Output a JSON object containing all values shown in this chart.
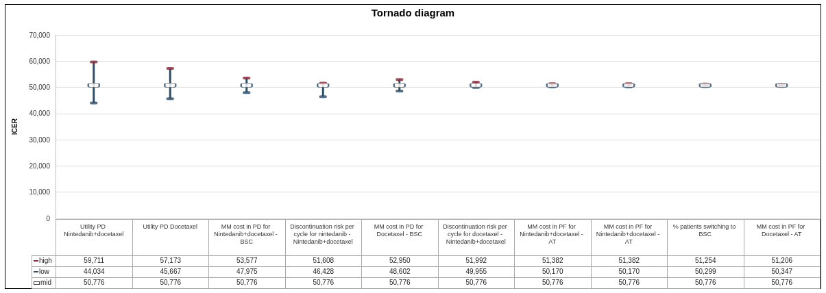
{
  "chart_data": {
    "type": "scatter",
    "title": "Tornado diagram",
    "ylabel": "ICER",
    "categories": [
      "Utility PD Nintedanib+docetaxel",
      "Utility PD Docetaxel",
      "MM cost in PD for Nintedanib+docetaxel - BSC",
      "Discontinuation risk per cycle for nintedanib - Nintedanib+docetaxel",
      "MM cost in PD for Docetaxel - BSC",
      "Discontinuation risk per cycle for docetaxel - Nintedanib+docetaxel",
      "MM cost in PF for Nintedanib+docetaxel - AT",
      "MM cost in PF for Nintedanib+docetaxel - AT",
      "% patients switching to BSC",
      "MM cost in PF for Docetaxel - AT"
    ],
    "series": [
      {
        "name": "high",
        "color": "#8b2332",
        "values": [
          59711,
          57173,
          53577,
          51608,
          52950,
          51992,
          51382,
          51382,
          51254,
          51206
        ],
        "value_labels": [
          "59,711",
          "57,173",
          "53,577",
          "51,608",
          "52,950",
          "51,992",
          "51,382",
          "51,382",
          "51,254",
          "51,206"
        ]
      },
      {
        "name": "low",
        "color": "#2c4e6b",
        "values": [
          44034,
          45667,
          47975,
          46428,
          48602,
          49955,
          50170,
          50170,
          50299,
          50347
        ],
        "value_labels": [
          "44,034",
          "45,667",
          "47,975",
          "46,428",
          "48,602",
          "49,955",
          "50,170",
          "50,170",
          "50,299",
          "50,347"
        ]
      },
      {
        "name": "mid",
        "color": "#ffffff",
        "values": [
          50776,
          50776,
          50776,
          50776,
          50776,
          50776,
          50776,
          50776,
          50776,
          50776
        ],
        "value_labels": [
          "50,776",
          "50,776",
          "50,776",
          "50,776",
          "50,776",
          "50,776",
          "50,776",
          "50,776",
          "50,776",
          "50,776"
        ]
      }
    ],
    "ylim": [
      0,
      70000
    ],
    "yticks": [
      {
        "value": 0,
        "label": "0"
      },
      {
        "value": 10000,
        "label": "10,000"
      },
      {
        "value": 20000,
        "label": "20,000"
      },
      {
        "value": 30000,
        "label": "30,000"
      },
      {
        "value": 40000,
        "label": "40,000"
      },
      {
        "value": 50000,
        "label": "50,000"
      },
      {
        "value": 60000,
        "label": "60,000"
      },
      {
        "value": 70000,
        "label": "70,000"
      }
    ],
    "grid": "y",
    "legend": "bottom"
  }
}
